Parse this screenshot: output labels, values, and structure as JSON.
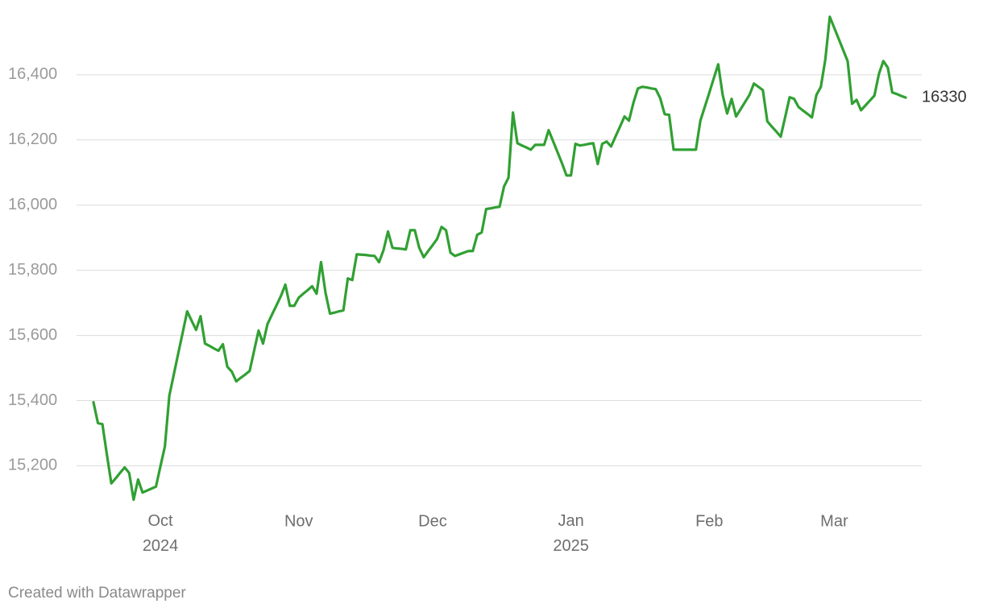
{
  "chart_data": {
    "type": "line",
    "footer": "Created with Datawrapper",
    "color": "#31a033",
    "grid": true,
    "ylim": [
      15080,
      16580
    ],
    "yticks": [
      {
        "value": 15200,
        "label": "15,200"
      },
      {
        "value": 15400,
        "label": "15,400"
      },
      {
        "value": 15600,
        "label": "15,600"
      },
      {
        "value": 15800,
        "label": "15,800"
      },
      {
        "value": 16000,
        "label": "16,000"
      },
      {
        "value": 16200,
        "label": "16,200"
      },
      {
        "value": 16400,
        "label": "16,400"
      }
    ],
    "categories": [
      null,
      null,
      null,
      null,
      null,
      null,
      null,
      null,
      null,
      null,
      null,
      null,
      null,
      null,
      null,
      "Oct 2024",
      null,
      null,
      null,
      null,
      null,
      null,
      null,
      null,
      null,
      null,
      null,
      null,
      null,
      null,
      null,
      null,
      null,
      null,
      null,
      null,
      null,
      null,
      null,
      null,
      null,
      null,
      null,
      null,
      null,
      null,
      "Nov",
      null,
      null,
      null,
      null,
      null,
      null,
      null,
      null,
      null,
      null,
      null,
      null,
      null,
      null,
      null,
      null,
      null,
      null,
      null,
      null,
      null,
      null,
      null,
      null,
      null,
      null,
      null,
      null,
      null,
      "Dec",
      null,
      null,
      null,
      null,
      null,
      null,
      null,
      null,
      null,
      null,
      null,
      null,
      null,
      null,
      null,
      null,
      null,
      null,
      null,
      null,
      null,
      null,
      null,
      null,
      null,
      null,
      null,
      null,
      null,
      null,
      "Jan 2025",
      null,
      null,
      null,
      null,
      null,
      null,
      null,
      null,
      null,
      null,
      null,
      null,
      null,
      null,
      null,
      null,
      null,
      null,
      null,
      null,
      null,
      null,
      null,
      null,
      null,
      null,
      null,
      null,
      null,
      null,
      "Feb",
      null,
      null,
      null,
      null,
      null,
      null,
      null,
      null,
      null,
      null,
      null,
      null,
      null,
      null,
      null,
      null,
      null,
      null,
      null,
      null,
      null,
      null,
      null,
      null,
      null,
      null,
      null,
      "Mar",
      null,
      null,
      null,
      null,
      null,
      null,
      null,
      null,
      null,
      null,
      null,
      null,
      null,
      null,
      null,
      null
    ],
    "values": [
      15395,
      15331,
      15328,
      15235,
      15146,
      15162,
      15179,
      15195,
      15178,
      15096,
      15158,
      15118,
      15124,
      15130,
      15136,
      15198,
      15259,
      15415,
      15480,
      15545,
      15609,
      15674,
      15645,
      15617,
      15659,
      15575,
      15568,
      15560,
      15553,
      15573,
      15504,
      15489,
      15459,
      15470,
      15480,
      15491,
      15553,
      15615,
      15575,
      15635,
      15664,
      15692,
      15721,
      15756,
      15691,
      15691,
      15716,
      15728,
      15739,
      15751,
      15728,
      15825,
      15731,
      15667,
      15670,
      15674,
      15677,
      15775,
      15770,
      15849,
      15848,
      15847,
      15845,
      15844,
      15825,
      15862,
      15919,
      15869,
      15867,
      15866,
      15864,
      15923,
      15923,
      15869,
      15840,
      15859,
      15877,
      15896,
      15933,
      15923,
      15854,
      15844,
      15849,
      15854,
      15859,
      15859,
      15909,
      15916,
      15988,
      15990,
      15993,
      15995,
      16057,
      16084,
      16284,
      16190,
      16183,
      16177,
      16170,
      16185,
      16185,
      16185,
      16230,
      16196,
      16162,
      16128,
      16091,
      16091,
      16188,
      16183,
      16185,
      16188,
      16190,
      16126,
      16188,
      16195,
      16180,
      16211,
      16241,
      16272,
      16259,
      16314,
      16358,
      16363,
      16361,
      16358,
      16356,
      16328,
      16279,
      16277,
      16170,
      16170,
      16170,
      16170,
      16170,
      16170,
      16259,
      16302,
      16345,
      16389,
      16432,
      16338,
      16281,
      16326,
      16272,
      16294,
      16316,
      16338,
      16373,
      16363,
      16353,
      16257,
      16241,
      16226,
      16210,
      16270,
      16331,
      16326,
      16301,
      16290,
      16280,
      16269,
      16338,
      16363,
      16447,
      16578,
      16544,
      16510,
      16476,
      16442,
      16311,
      16323,
      16291,
      16306,
      16321,
      16336,
      16402,
      16442,
      16422,
      16346,
      16341,
      16335,
      16330
    ]
  }
}
